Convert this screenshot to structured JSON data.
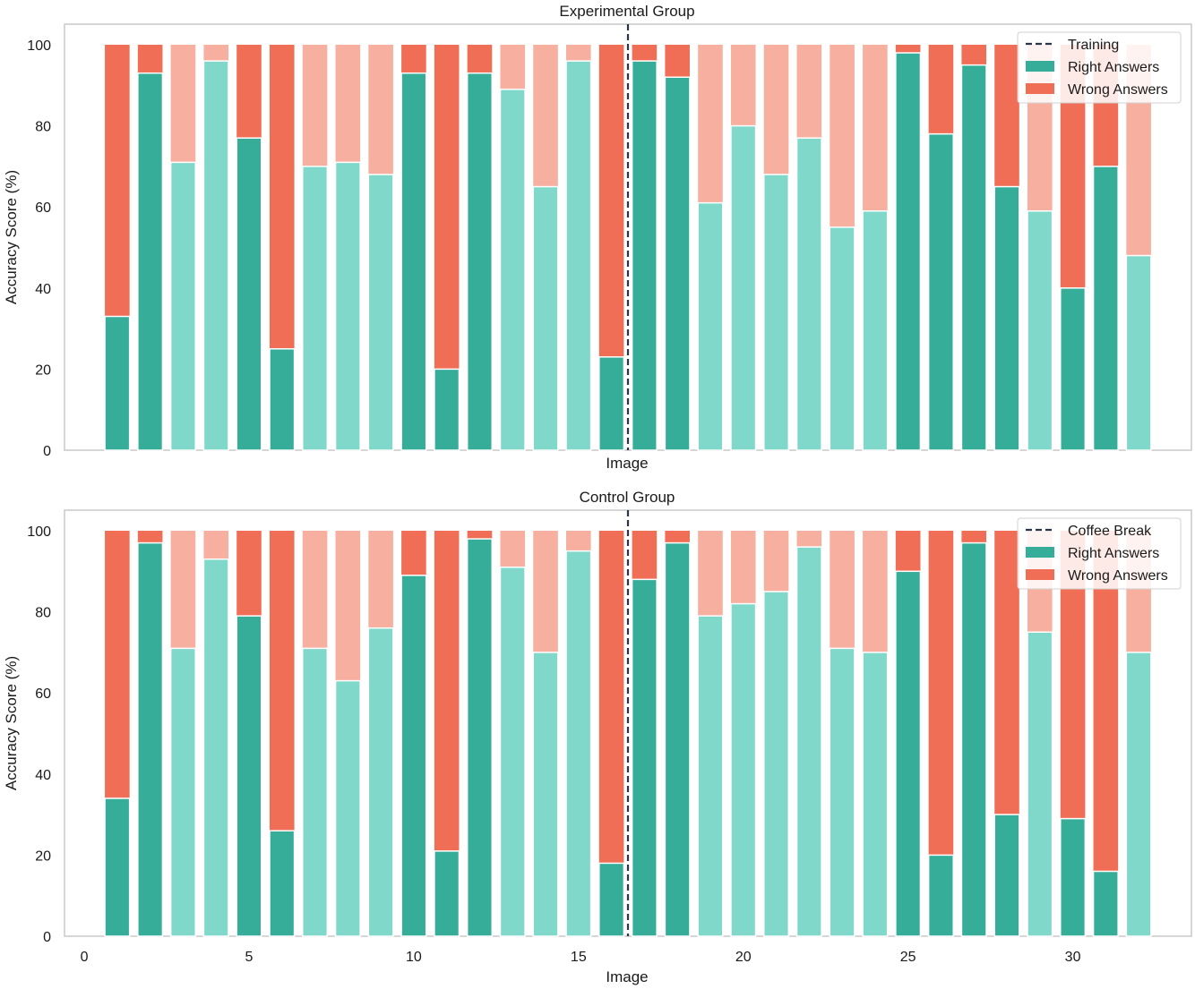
{
  "colors": {
    "right_dark": "#35ad99",
    "right_light": "#80d8ca",
    "wrong_dark": "#f06e55",
    "wrong_light": "#f7afa0",
    "vline": "#2a3648",
    "frame": "#c8c8c8"
  },
  "chart_data": [
    {
      "type": "bar",
      "stacked": true,
      "title": "Experimental Group",
      "xlabel": "Image",
      "ylabel": "Accuracy Score (%)",
      "xlim": [
        -0.6,
        33.6
      ],
      "ylim": [
        0,
        100
      ],
      "yticks": [
        "0",
        "20",
        "40",
        "60",
        "80",
        "100"
      ],
      "xticks": [],
      "legend": {
        "position": "top-right",
        "vline_label": "Training",
        "right_label": "Right Answers",
        "wrong_label": "Wrong Answers"
      },
      "vline_x": 16.5,
      "x": [
        1,
        2,
        3,
        4,
        5,
        6,
        7,
        8,
        9,
        10,
        11,
        12,
        13,
        14,
        15,
        16,
        17,
        18,
        19,
        20,
        21,
        22,
        23,
        24,
        25,
        26,
        27,
        28,
        29,
        30,
        31,
        32
      ],
      "right": [
        33,
        93,
        71,
        96,
        77,
        25,
        70,
        71,
        68,
        93,
        20,
        93,
        89,
        65,
        96,
        23,
        96,
        92,
        61,
        80,
        68,
        77,
        55,
        59,
        98,
        78,
        95,
        65,
        59,
        40,
        70,
        48
      ],
      "shade": [
        "dark",
        "dark",
        "light",
        "light",
        "dark",
        "dark",
        "light",
        "light",
        "light",
        "dark",
        "dark",
        "dark",
        "light",
        "light",
        "light",
        "dark",
        "dark",
        "dark",
        "light",
        "light",
        "light",
        "light",
        "light",
        "light",
        "dark",
        "dark",
        "dark",
        "dark",
        "light",
        "dark",
        "dark",
        "light"
      ]
    },
    {
      "type": "bar",
      "stacked": true,
      "title": "Control Group",
      "xlabel": "Image",
      "ylabel": "Accuracy Score (%)",
      "xlim": [
        -0.6,
        33.6
      ],
      "ylim": [
        0,
        100
      ],
      "yticks": [
        "0",
        "20",
        "40",
        "60",
        "80",
        "100"
      ],
      "xticks": [
        "0",
        "5",
        "10",
        "15",
        "20",
        "25",
        "30"
      ],
      "legend": {
        "position": "top-right",
        "vline_label": "Coffee Break",
        "right_label": "Right Answers",
        "wrong_label": "Wrong Answers"
      },
      "vline_x": 16.5,
      "x": [
        1,
        2,
        3,
        4,
        5,
        6,
        7,
        8,
        9,
        10,
        11,
        12,
        13,
        14,
        15,
        16,
        17,
        18,
        19,
        20,
        21,
        22,
        23,
        24,
        25,
        26,
        27,
        28,
        29,
        30,
        31,
        32
      ],
      "right": [
        34,
        97,
        71,
        93,
        79,
        26,
        71,
        63,
        76,
        89,
        21,
        98,
        91,
        70,
        95,
        18,
        88,
        97,
        79,
        82,
        85,
        96,
        71,
        70,
        90,
        20,
        97,
        30,
        75,
        29,
        16,
        70
      ],
      "shade": [
        "dark",
        "dark",
        "light",
        "light",
        "dark",
        "dark",
        "light",
        "light",
        "light",
        "dark",
        "dark",
        "dark",
        "light",
        "light",
        "light",
        "dark",
        "dark",
        "dark",
        "light",
        "light",
        "light",
        "light",
        "light",
        "light",
        "dark",
        "dark",
        "dark",
        "dark",
        "light",
        "dark",
        "dark",
        "light"
      ]
    }
  ]
}
